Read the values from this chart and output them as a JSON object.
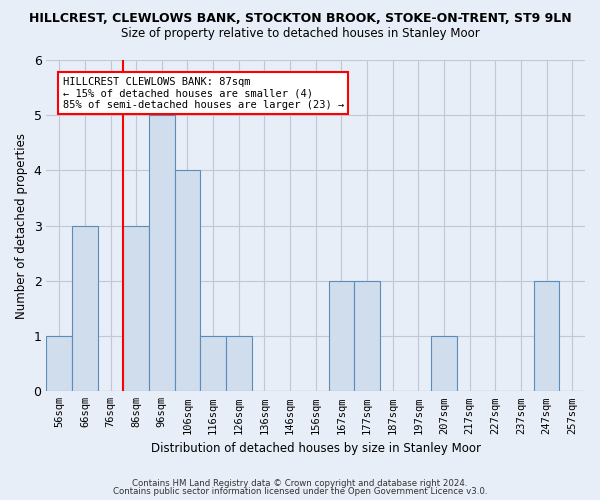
{
  "title": "HILLCREST, CLEWLOWS BANK, STOCKTON BROOK, STOKE-ON-TRENT, ST9 9LN",
  "subtitle": "Size of property relative to detached houses in Stanley Moor",
  "xlabel": "Distribution of detached houses by size in Stanley Moor",
  "ylabel": "Number of detached properties",
  "footer_line1": "Contains HM Land Registry data © Crown copyright and database right 2024.",
  "footer_line2": "Contains public sector information licensed under the Open Government Licence v3.0.",
  "bins": [
    "56sqm",
    "66sqm",
    "76sqm",
    "86sqm",
    "96sqm",
    "106sqm",
    "116sqm",
    "126sqm",
    "136sqm",
    "146sqm",
    "156sqm",
    "167sqm",
    "177sqm",
    "187sqm",
    "197sqm",
    "207sqm",
    "217sqm",
    "227sqm",
    "237sqm",
    "247sqm",
    "257sqm"
  ],
  "values": [
    1,
    3,
    0,
    3,
    5,
    4,
    1,
    1,
    0,
    0,
    0,
    2,
    2,
    0,
    0,
    1,
    0,
    0,
    0,
    2,
    0
  ],
  "bar_color": "#cfdded",
  "bar_edge_color": "#5b8db8",
  "annotation_text": "HILLCREST CLEWLOWS BANK: 87sqm\n← 15% of detached houses are smaller (4)\n85% of semi-detached houses are larger (23) →",
  "red_line_x": 2.5,
  "ylim": [
    0,
    6
  ],
  "yticks": [
    0,
    1,
    2,
    3,
    4,
    5,
    6
  ],
  "bg_color": "#e8eef7",
  "plot_bg_color": "#e8eef7",
  "grid_color": "#c0c8d8"
}
